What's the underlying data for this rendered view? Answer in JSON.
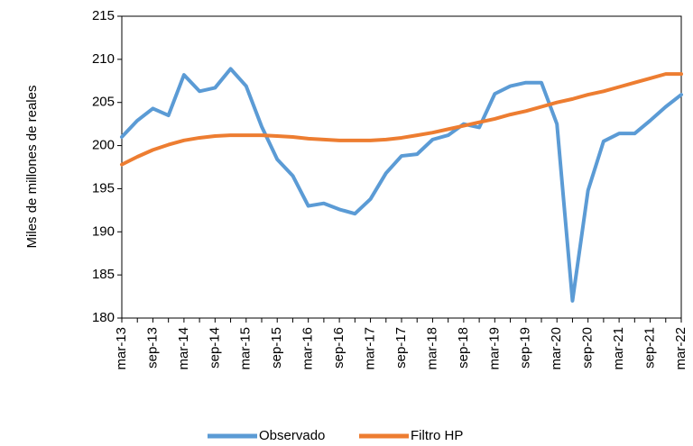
{
  "chart_data": {
    "type": "line",
    "y_label": "Miles de millones de reales",
    "categories": [
      "mar-13",
      null,
      "sep-13",
      null,
      "mar-14",
      null,
      "sep-14",
      null,
      "mar-15",
      null,
      "sep-15",
      null,
      "mar-16",
      null,
      "sep-16",
      null,
      "mar-17",
      null,
      "sep-17",
      null,
      "mar-18",
      null,
      "sep-18",
      null,
      "mar-19",
      null,
      "sep-19",
      null,
      "mar-20",
      null,
      "sep-20",
      null,
      "mar-21",
      null,
      "sep-21",
      null,
      "mar-22"
    ],
    "series": [
      {
        "name": "Observado",
        "color": "#5b9bd5",
        "values": [
          201.0,
          202.9,
          204.3,
          203.5,
          208.2,
          206.3,
          206.7,
          208.9,
          206.9,
          202.2,
          198.4,
          196.5,
          193.0,
          193.3,
          192.6,
          192.1,
          193.8,
          196.8,
          198.8,
          199.0,
          200.7,
          201.2,
          202.5,
          202.1,
          206.0,
          206.9,
          207.3,
          207.3,
          202.5,
          182.0,
          194.8,
          200.5,
          201.4,
          201.4,
          202.9,
          204.5,
          205.9
        ]
      },
      {
        "name": "Filtro HP",
        "color": "#ed7d31",
        "values": [
          197.8,
          198.7,
          199.5,
          200.1,
          200.6,
          200.9,
          201.1,
          201.2,
          201.2,
          201.2,
          201.1,
          201.0,
          200.8,
          200.7,
          200.6,
          200.6,
          200.6,
          200.7,
          200.9,
          201.2,
          201.5,
          201.9,
          202.3,
          202.7,
          203.1,
          203.6,
          204.0,
          204.5,
          205.0,
          205.4,
          205.9,
          206.3,
          206.8,
          207.3,
          207.8,
          208.3,
          208.3
        ]
      }
    ],
    "ylim": [
      180,
      215
    ],
    "yticks": [
      180,
      185,
      190,
      195,
      200,
      205,
      210,
      215
    ]
  }
}
